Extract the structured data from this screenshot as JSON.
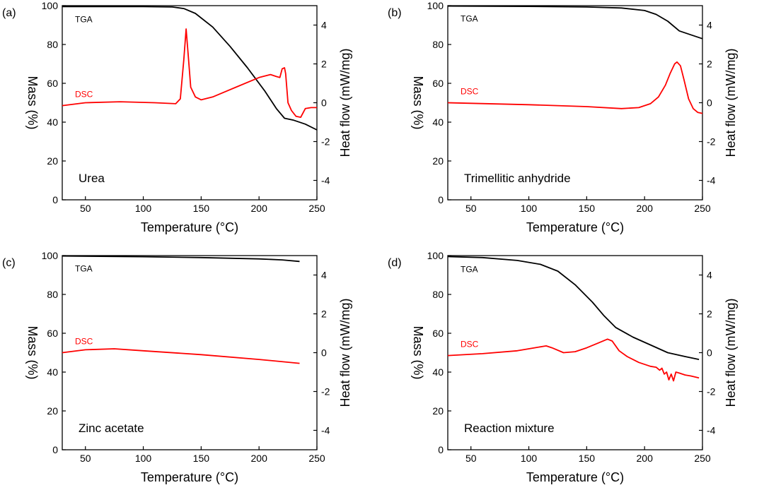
{
  "figure": {
    "colors": {
      "axis": "#000000",
      "tga": "#000000",
      "dsc": "#ff0000"
    }
  },
  "chart_data": [
    {
      "type": "line",
      "panel": "(a)",
      "title": "Urea",
      "xlabel": "Temperature (°C)",
      "ylabel_left": "Mass (%)",
      "ylabel_right": "Heat flow (mW/mg)",
      "xlim": [
        30,
        250
      ],
      "xticks": [
        50,
        100,
        150,
        200,
        250
      ],
      "ylim_left": [
        0,
        100
      ],
      "yticks_left": [
        0,
        20,
        40,
        60,
        80,
        100
      ],
      "ylim_right": [
        -5,
        5
      ],
      "yticks_right": [
        -4,
        -2,
        0,
        2,
        4
      ],
      "series": [
        {
          "name": "TGA",
          "axis": "left",
          "color": "#000000",
          "x": [
            30,
            60,
            100,
            125,
            135,
            145,
            160,
            175,
            190,
            205,
            215,
            222,
            230,
            240,
            250
          ],
          "y": [
            99.5,
            99.5,
            99.5,
            99.3,
            98.5,
            96,
            89,
            79,
            68,
            56,
            47,
            42,
            41,
            39,
            36
          ]
        },
        {
          "name": "DSC",
          "axis": "right",
          "color": "#ff0000",
          "x": [
            30,
            50,
            80,
            110,
            128,
            132,
            135,
            137,
            139,
            141,
            145,
            150,
            160,
            180,
            200,
            210,
            215,
            218,
            220,
            222,
            223,
            225,
            228,
            232,
            236,
            240,
            245,
            250
          ],
          "y": [
            -0.15,
            0.0,
            0.05,
            0.0,
            -0.05,
            0.2,
            2.2,
            3.8,
            2.3,
            0.8,
            0.3,
            0.15,
            0.3,
            0.8,
            1.3,
            1.45,
            1.35,
            1.3,
            1.75,
            1.8,
            1.5,
            0.0,
            -0.4,
            -0.7,
            -0.75,
            -0.3,
            -0.25,
            -0.25
          ]
        }
      ]
    },
    {
      "type": "line",
      "panel": "(b)",
      "title": "Trimellitic anhydride",
      "xlabel": "Temperature (°C)",
      "ylabel_left": "Mass (%)",
      "ylabel_right": "Heat flow (mW/mg)",
      "xlim": [
        30,
        250
      ],
      "xticks": [
        50,
        100,
        150,
        200,
        250
      ],
      "ylim_left": [
        0,
        100
      ],
      "yticks_left": [
        0,
        20,
        40,
        60,
        80,
        100
      ],
      "ylim_right": [
        -5,
        5
      ],
      "yticks_right": [
        -4,
        -2,
        0,
        2,
        4
      ],
      "series": [
        {
          "name": "TGA",
          "axis": "left",
          "color": "#000000",
          "x": [
            30,
            100,
            150,
            180,
            200,
            210,
            220,
            230,
            240,
            250
          ],
          "y": [
            99.8,
            99.6,
            99.3,
            98.8,
            97.5,
            95.5,
            92,
            87,
            85,
            83
          ]
        },
        {
          "name": "DSC",
          "axis": "right",
          "color": "#ff0000",
          "x": [
            30,
            100,
            150,
            180,
            195,
            205,
            212,
            218,
            222,
            226,
            228,
            231,
            234,
            238,
            242,
            246,
            250
          ],
          "y": [
            0.0,
            -0.1,
            -0.2,
            -0.3,
            -0.25,
            -0.05,
            0.3,
            0.9,
            1.5,
            2.0,
            2.1,
            1.9,
            1.2,
            0.2,
            -0.3,
            -0.5,
            -0.55
          ]
        }
      ]
    },
    {
      "type": "line",
      "panel": "(c)",
      "title": "Zinc acetate",
      "xlabel": "Temperature (°C)",
      "ylabel_left": "Mass (%)",
      "ylabel_right": "Heat flow (mW/mg)",
      "xlim": [
        30,
        250
      ],
      "xticks": [
        50,
        100,
        150,
        200,
        250
      ],
      "ylim_left": [
        0,
        100
      ],
      "yticks_left": [
        0,
        20,
        40,
        60,
        80,
        100
      ],
      "ylim_right": [
        -5,
        5
      ],
      "yticks_right": [
        -4,
        -2,
        0,
        2,
        4
      ],
      "series": [
        {
          "name": "TGA",
          "axis": "left",
          "color": "#000000",
          "x": [
            30,
            100,
            150,
            200,
            220,
            235
          ],
          "y": [
            99.8,
            99.4,
            99,
            98.3,
            97.8,
            97
          ]
        },
        {
          "name": "DSC",
          "axis": "right",
          "color": "#ff0000",
          "x": [
            30,
            50,
            75,
            100,
            150,
            200,
            235
          ],
          "y": [
            0.0,
            0.15,
            0.2,
            0.1,
            -0.1,
            -0.35,
            -0.55
          ]
        }
      ]
    },
    {
      "type": "line",
      "panel": "(d)",
      "title": "Reaction mixture",
      "xlabel": "Temperature (°C)",
      "ylabel_left": "Mass (%)",
      "ylabel_right": "Heat flow (mW/mg)",
      "xlim": [
        30,
        250
      ],
      "xticks": [
        50,
        100,
        150,
        200,
        250
      ],
      "ylim_left": [
        0,
        100
      ],
      "yticks_left": [
        0,
        20,
        40,
        60,
        80,
        100
      ],
      "ylim_right": [
        -5,
        5
      ],
      "yticks_right": [
        -4,
        -2,
        0,
        2,
        4
      ],
      "series": [
        {
          "name": "TGA",
          "axis": "left",
          "color": "#000000",
          "x": [
            30,
            60,
            90,
            110,
            125,
            140,
            155,
            165,
            175,
            190,
            205,
            220,
            235,
            247
          ],
          "y": [
            99.5,
            99,
            97.5,
            95.5,
            92,
            85,
            76,
            69,
            63,
            58,
            54,
            50,
            48,
            46.5
          ]
        },
        {
          "name": "DSC",
          "axis": "right",
          "color": "#ff0000",
          "x": [
            30,
            60,
            90,
            105,
            115,
            120,
            130,
            140,
            150,
            160,
            168,
            172,
            178,
            185,
            195,
            205,
            210,
            213,
            215,
            217,
            219,
            221,
            223,
            225,
            227,
            230,
            235,
            240,
            247
          ],
          "y": [
            -0.15,
            -0.05,
            0.1,
            0.25,
            0.35,
            0.25,
            0.0,
            0.05,
            0.25,
            0.5,
            0.7,
            0.6,
            0.1,
            -0.2,
            -0.5,
            -0.7,
            -0.75,
            -0.9,
            -0.8,
            -1.1,
            -1.0,
            -1.4,
            -1.1,
            -1.45,
            -1.0,
            -1.05,
            -1.15,
            -1.2,
            -1.3
          ]
        }
      ]
    }
  ]
}
